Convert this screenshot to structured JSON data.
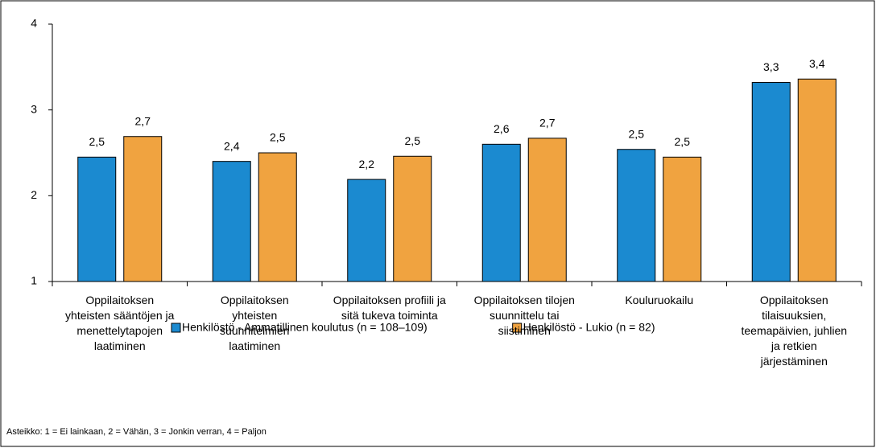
{
  "chart_data": {
    "type": "bar",
    "categories": [
      "Oppilaitoksen\nyhteisten sääntöjen ja\nmenettelytapojen\nlaatiminen",
      "Oppilaitoksen\nyhteisten\nsuunnitelmien\nlaatiminen",
      "Oppilaitoksen profiili ja\nsitä tukeva toiminta",
      "Oppilaitoksen tilojen\nsuunnittelu tai\nsiistiminen",
      "Kouluruokailu",
      "Oppilaitoksen\ntilaisuuksien,\nteemapäivien, juhlien\nja retkien\njärjestäminen"
    ],
    "series": [
      {
        "name": "Henkilöstö - Ammatillinen koulutus (n = 108–109)",
        "color": "#1b8ad0",
        "values": [
          2.45,
          2.4,
          2.19,
          2.6,
          2.54,
          3.32
        ],
        "value_labels": [
          "2,5",
          "2,4",
          "2,2",
          "2,6",
          "2,5",
          "3,3"
        ]
      },
      {
        "name": "Henkilöstö - Lukio (n = 82)",
        "color": "#f0a340",
        "values": [
          2.69,
          2.5,
          2.46,
          2.67,
          2.45,
          3.36
        ],
        "value_labels": [
          "2,7",
          "2,5",
          "2,5",
          "2,7",
          "2,5",
          "3,4"
        ]
      }
    ],
    "ylim": [
      1,
      4
    ],
    "yticks": [
      1,
      2,
      3,
      4
    ],
    "grid": false,
    "legend": "bottom",
    "note": "Asteikko: 1 = Ei lainkaan, 2 = Vähän, 3 = Jonkin verran, 4 = Paljon"
  }
}
